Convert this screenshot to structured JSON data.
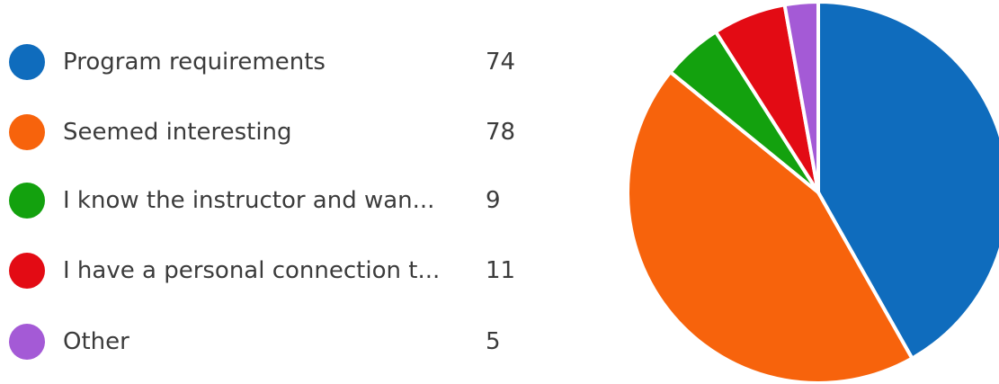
{
  "chart_data": {
    "type": "pie",
    "title": "",
    "legend_position": "left",
    "slices": [
      {
        "label": "Program requirements",
        "value": 74,
        "color": "#0f6cbd"
      },
      {
        "label": "Seemed interesting",
        "value": 78,
        "color": "#f7630c"
      },
      {
        "label": "I know the instructor and wan...",
        "value": 9,
        "color": "#13a10e"
      },
      {
        "label": "I have a personal connection t...",
        "value": 11,
        "color": "#e30b14"
      },
      {
        "label": "Other",
        "value": 5,
        "color": "#a45ad6"
      }
    ]
  }
}
